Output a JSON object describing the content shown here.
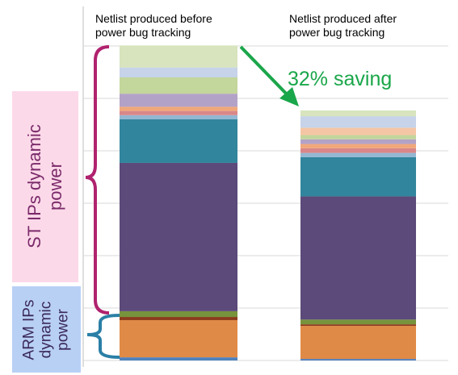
{
  "chart_data": {
    "type": "stacked-bar",
    "categories": [
      "Netlist produced before power bug tracking",
      "Netlist produced after power bug tracking"
    ],
    "annotations": [
      "32% saving",
      "ST IPs dynamic power",
      "ARM IPs dynamic power"
    ],
    "ylim": [
      0,
      60
    ],
    "yticks": [
      0,
      10,
      20,
      30,
      40,
      50,
      60
    ],
    "grid": true,
    "series": [
      {
        "color": "#4f81bd",
        "values": [
          0.6,
          0.3
        ]
      },
      {
        "color": "#e08a47",
        "values": [
          7.1,
          6.3
        ]
      },
      {
        "color": "#8b3a1a",
        "values": [
          0.6,
          0.3
        ]
      },
      {
        "color": "#77933c",
        "values": [
          1.1,
          0.9
        ]
      },
      {
        "color": "#5c4a7a",
        "values": [
          28.3,
          23.5
        ]
      },
      {
        "color": "#31859c",
        "values": [
          8.3,
          7.5
        ]
      },
      {
        "color": "#93b7d3",
        "values": [
          0.8,
          0.8
        ]
      },
      {
        "color": "#d9878a",
        "values": [
          0.8,
          0.9
        ]
      },
      {
        "color": "#f0a87a",
        "values": [
          0.8,
          0.8
        ]
      },
      {
        "color": "#b3a2c7",
        "values": [
          2.5,
          0.9
        ]
      },
      {
        "color": "#c3d69b",
        "values": [
          3.1,
          0.8
        ]
      },
      {
        "color": "#f5c6a5",
        "values": [
          0.0,
          1.4
        ]
      },
      {
        "color": "#c6d3e8",
        "values": [
          1.9,
          2.2
        ]
      },
      {
        "color": "#d7e4bd",
        "values": [
          4.2,
          1.1
        ]
      }
    ]
  }
}
